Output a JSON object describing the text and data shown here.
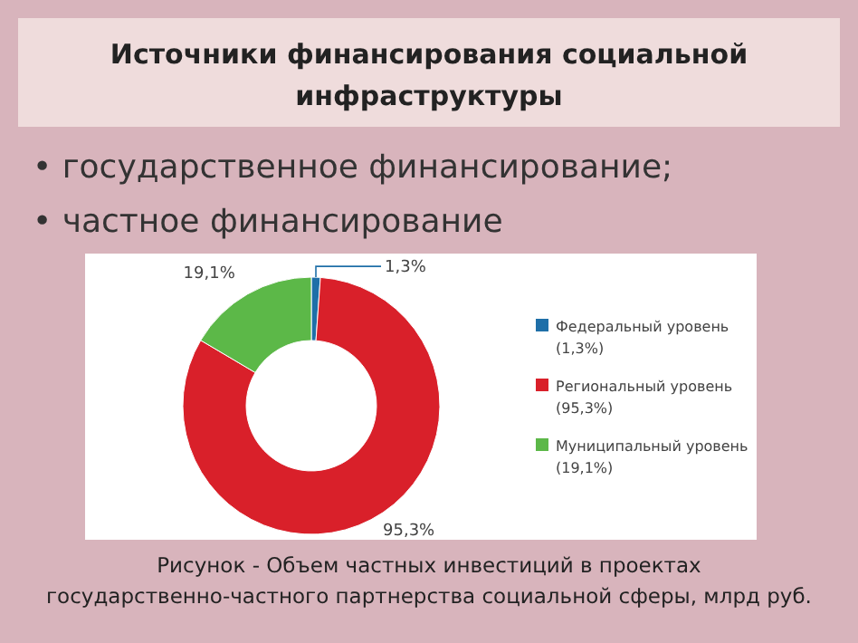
{
  "chart_data": {
    "type": "donut",
    "title": "Источники финансирования социальной инфраструктуры",
    "categories": [
      "Федеральный уровень (1,3%)",
      "Региональный уровень (95,3%)",
      "Муниципальный уровень (19,1%)"
    ],
    "values": [
      1.3,
      95.3,
      19.1
    ],
    "colors": [
      "#1f6fa8",
      "#d9202a",
      "#5cb848"
    ],
    "value_labels": [
      "1,3%",
      "95,3%",
      "19,1%"
    ],
    "legend": "right",
    "annotations": [
      "• государственное финансирование;",
      "• частное финансирование",
      "Рисунок - Объем частных инвестиций в проектах государственно-частного партнерства социальной сферы, млрд руб."
    ]
  }
}
